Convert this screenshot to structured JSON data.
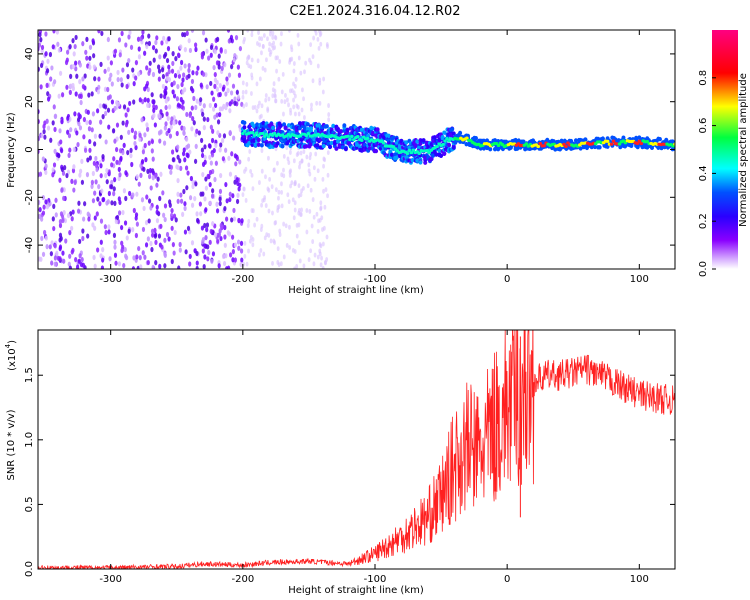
{
  "title": "C2E1.2024.316.04.12.R02",
  "chart_data": [
    {
      "type": "heatmap",
      "xlabel": "Height of straight line (km)",
      "ylabel": "Frequency (Hz)",
      "xlim": [
        -355,
        127
      ],
      "ylim": [
        -50,
        50
      ],
      "xticks": [
        -300,
        -200,
        -100,
        0,
        100
      ],
      "xtick_labels": [
        "-300",
        "-200",
        "-100",
        "0",
        "100"
      ],
      "yticks": [
        -40,
        -20,
        0,
        20,
        40
      ],
      "ytick_labels": [
        "-40",
        "-20",
        "0",
        "20",
        "40"
      ],
      "colorbar": {
        "label": "Normalized spectral amplitude",
        "range": [
          0,
          1
        ],
        "ticks": [
          0.0,
          0.2,
          0.4,
          0.6,
          0.8
        ],
        "tick_labels": [
          "0.0",
          "0.2",
          "0.4",
          "0.6",
          "0.8"
        ],
        "colormap": [
          "#ffffff",
          "#8a00ff",
          "#2a00ff",
          "#0050ff",
          "#00ffff",
          "#00ff40",
          "#ffff00",
          "#ff0000",
          "#ff0080"
        ]
      },
      "signal_track": {
        "x": [
          -200,
          -180,
          -150,
          -120,
          -100,
          -80,
          -60,
          -45,
          -35,
          -20,
          0,
          20,
          50,
          80,
          100,
          127
        ],
        "frequency": [
          7,
          6,
          6,
          5,
          4,
          -1,
          -1,
          4,
          5,
          2,
          2,
          2,
          2,
          3,
          3,
          2
        ]
      },
      "noise_region": {
        "x_start": -355,
        "x_end": -200
      },
      "grid": false
    },
    {
      "type": "line",
      "xlabel": "Height of straight line (km)",
      "ylabel": "SNR (10 * v/v)",
      "scale_label": "(x10",
      "scale_exponent": "4",
      "xlim": [
        -355,
        127
      ],
      "ylim": [
        0,
        1.85
      ],
      "xticks": [
        -300,
        -200,
        -100,
        0,
        100
      ],
      "xtick_labels": [
        "-300",
        "-200",
        "-100",
        "0",
        "100"
      ],
      "yticks": [
        0.0,
        0.5,
        1.0,
        1.5
      ],
      "ytick_labels": [
        "0.0",
        "0.5",
        "1.0",
        "1.5"
      ],
      "color": "#ff2020",
      "series": [
        {
          "x": [
            -355,
            -300,
            -250,
            -230,
            -200,
            -180,
            -150,
            -120,
            -100,
            -80,
            -60,
            -50,
            -40,
            -30,
            -20,
            -10,
            0,
            10,
            20,
            30,
            40,
            50,
            60,
            70,
            80,
            90,
            100,
            110,
            127
          ],
          "values": [
            0.01,
            0.01,
            0.02,
            0.04,
            0.03,
            0.05,
            0.06,
            0.04,
            0.12,
            0.25,
            0.4,
            0.55,
            0.8,
            0.95,
            0.9,
            1.1,
            1.25,
            1.35,
            1.45,
            1.5,
            1.5,
            1.52,
            1.55,
            1.5,
            1.45,
            1.4,
            1.35,
            1.33,
            1.3
          ]
        }
      ],
      "annotations": [
        {
          "x": 10,
          "y": 1.8
        },
        {
          "x": 10,
          "y": 0.4
        }
      ],
      "grid": false
    }
  ]
}
